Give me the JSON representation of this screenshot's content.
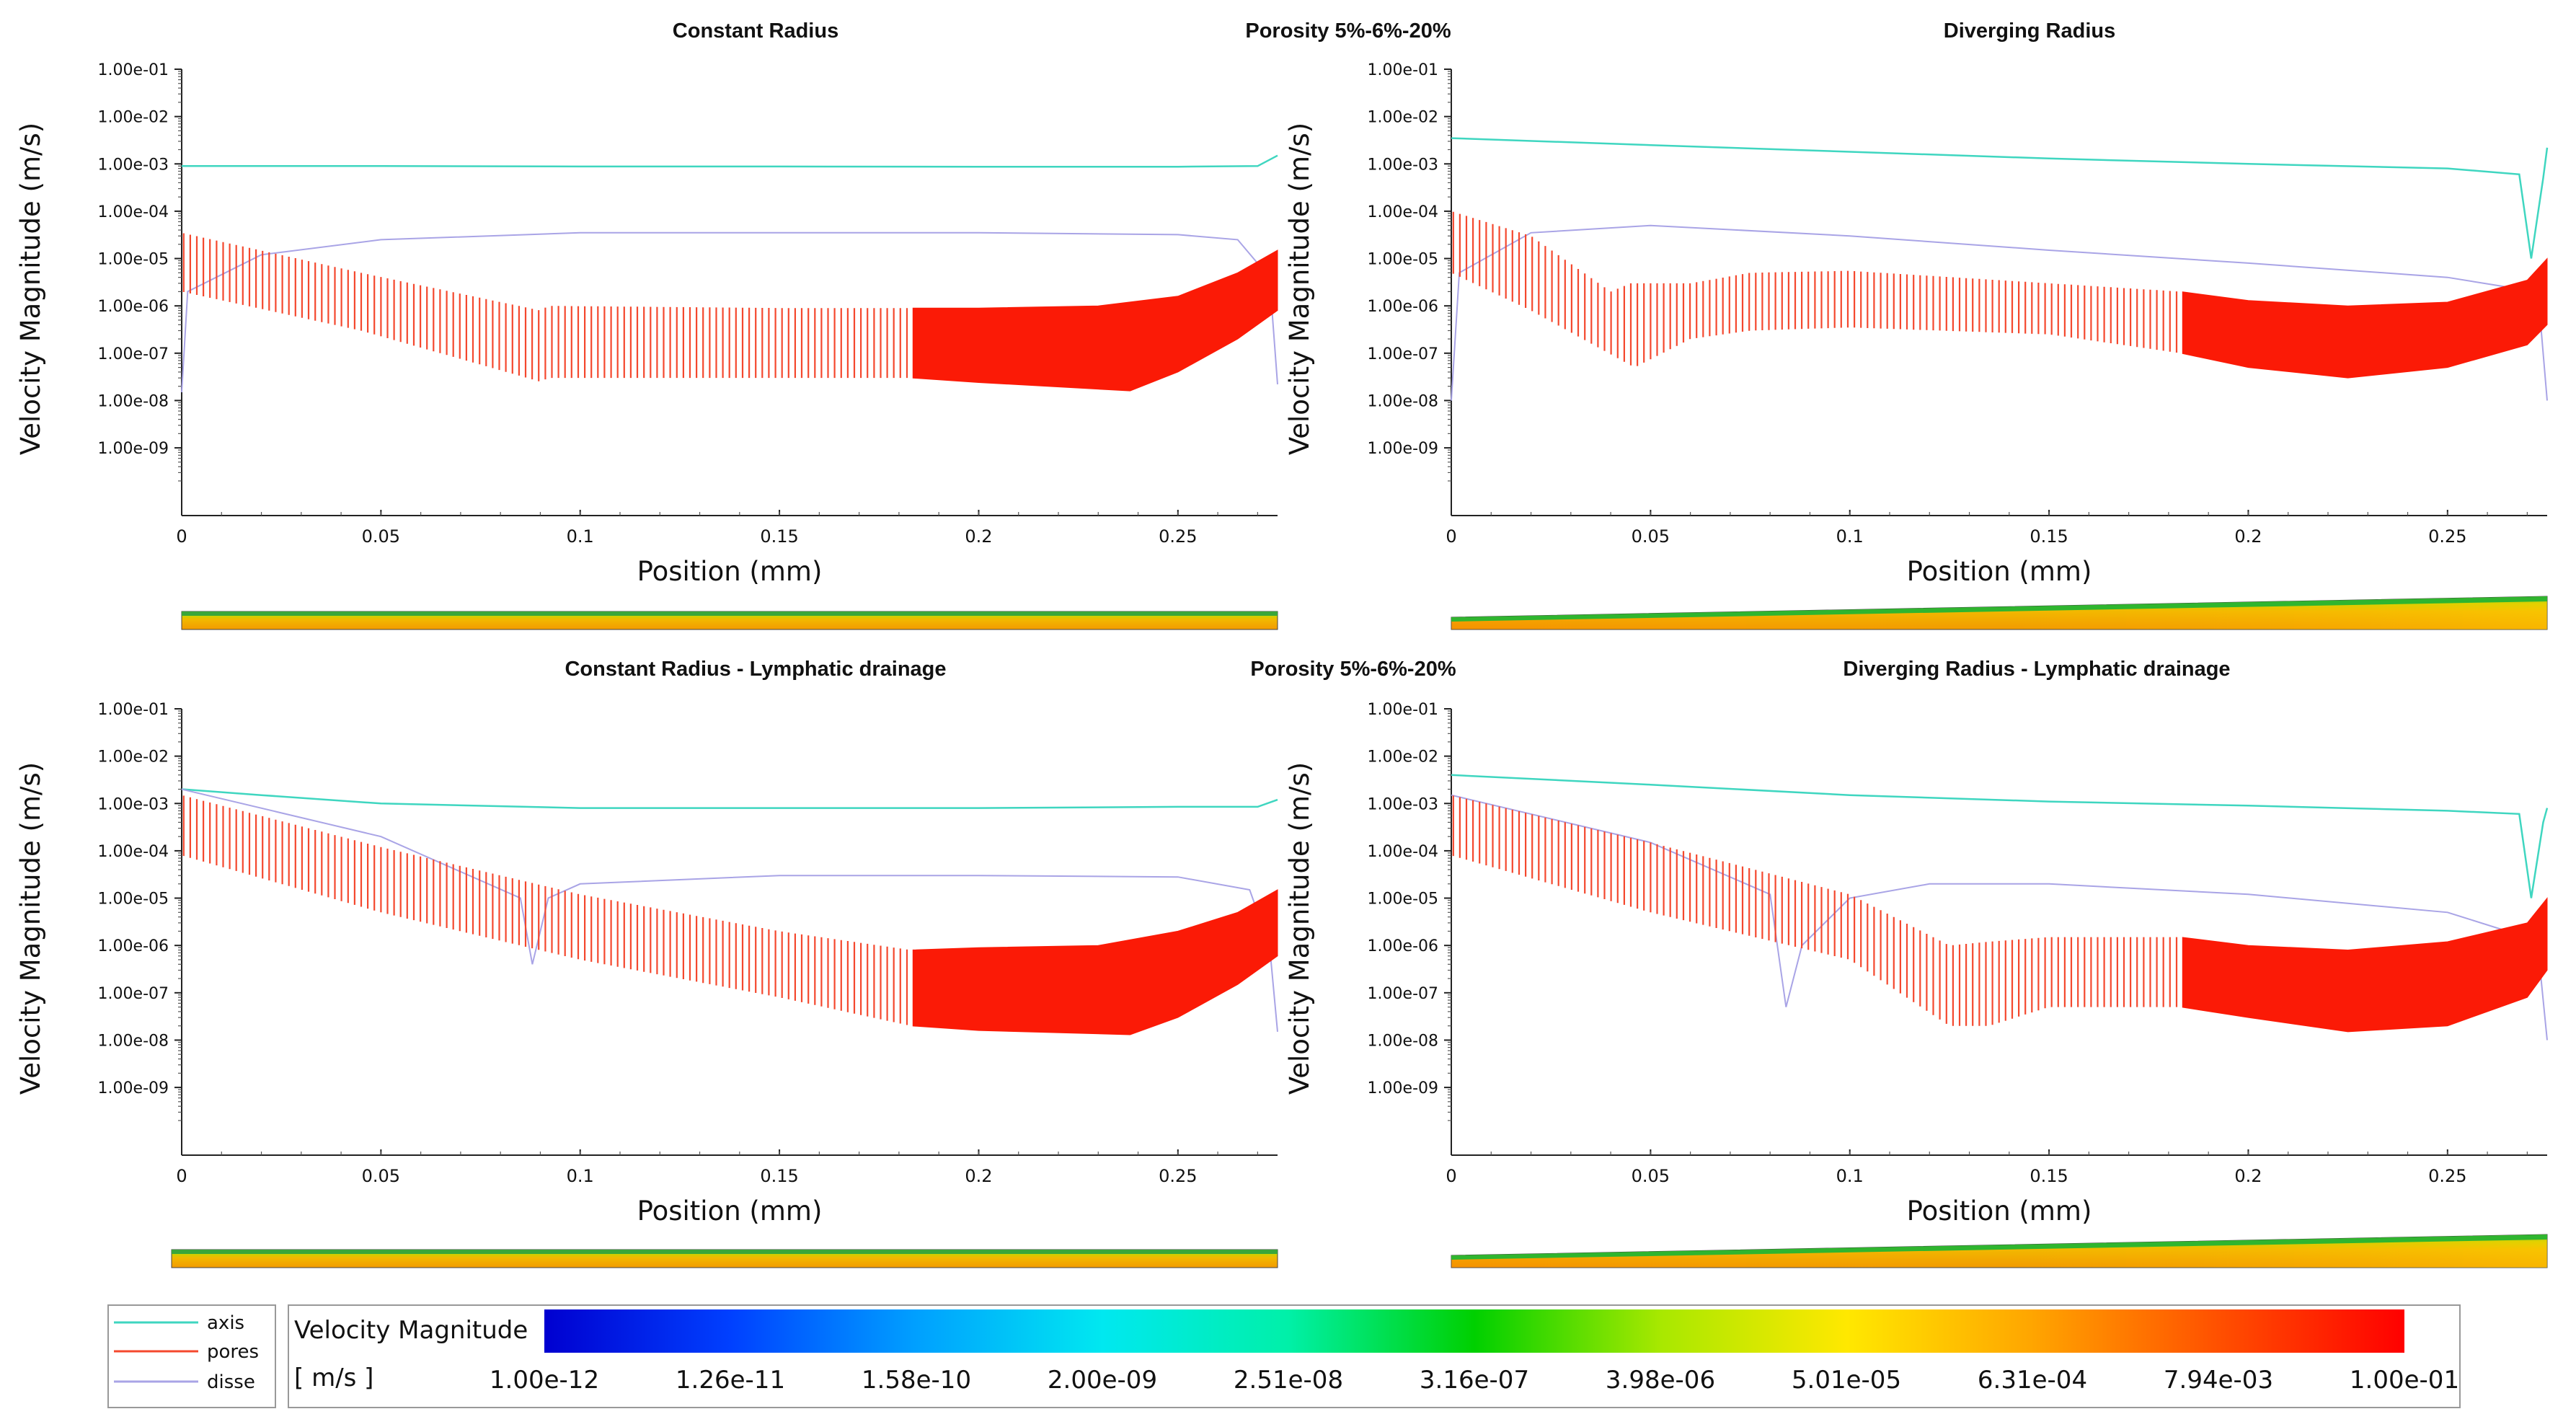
{
  "figure": {
    "porosity_label": "Porosity 5%-6%-20%",
    "legend": [
      {
        "name": "axis",
        "color": "#3fd6c0"
      },
      {
        "name": "pores",
        "color": "#f4482e"
      },
      {
        "name": "disse",
        "color": "#a9a4e6"
      }
    ],
    "colorbar": {
      "title": "Velocity Magnitude",
      "unit": "[ m/s ]",
      "ticks": [
        "1.00e-12",
        "1.26e-11",
        "1.58e-10",
        "2.00e-09",
        "2.51e-08",
        "3.16e-07",
        "3.98e-06",
        "5.01e-05",
        "6.31e-04",
        "7.94e-03",
        "1.00e-01"
      ],
      "colors": [
        "#0000d0",
        "#0040ff",
        "#00a0ff",
        "#00e8f0",
        "#00f0a8",
        "#00d000",
        "#a8e800",
        "#ffe800",
        "#ffa500",
        "#ff5000",
        "#ff0000"
      ]
    }
  },
  "chart_data": [
    {
      "type": "line",
      "title": "Constant Radius",
      "xlabel": "Position (mm)",
      "ylabel": "Velocity Magnitude (m/s)",
      "yscale": "log",
      "ylim": [
        1e-10,
        0.1
      ],
      "xlim": [
        0,
        0.275
      ],
      "x_ticks": [
        "0",
        "0.05",
        "0.1",
        "0.15",
        "0.2",
        "0.25"
      ],
      "y_ticks": [
        "1.00e-01",
        "1.00e-02",
        "1.00e-03",
        "1.00e-04",
        "1.00e-05",
        "1.00e-06",
        "1.00e-07",
        "1.00e-08",
        "1.00e-09"
      ],
      "series": [
        {
          "name": "axis",
          "points": [
            [
              0,
              0.0009
            ],
            [
              0.05,
              0.0009
            ],
            [
              0.1,
              0.00088
            ],
            [
              0.15,
              0.00088
            ],
            [
              0.2,
              0.00087
            ],
            [
              0.25,
              0.00087
            ],
            [
              0.27,
              0.0009
            ],
            [
              0.275,
              0.0015
            ]
          ]
        },
        {
          "name": "disse",
          "points": [
            [
              0,
              1.5e-08
            ],
            [
              0.0015,
              2e-06
            ],
            [
              0.02,
              1.2e-05
            ],
            [
              0.05,
              2.5e-05
            ],
            [
              0.1,
              3.5e-05
            ],
            [
              0.15,
              3.5e-05
            ],
            [
              0.2,
              3.5e-05
            ],
            [
              0.25,
              3.2e-05
            ],
            [
              0.265,
              2.5e-05
            ],
            [
              0.273,
              4e-06
            ],
            [
              0.275,
              2.2e-08
            ]
          ]
        },
        {
          "name": "pores",
          "top": [
            [
              0,
              3.5e-05
            ],
            [
              0.045,
              5e-06
            ],
            [
              0.09,
              8e-07
            ],
            [
              0.092,
              1e-06
            ],
            [
              0.15,
              9e-07
            ],
            [
              0.183,
              9e-07
            ],
            [
              0.2,
              9e-07
            ],
            [
              0.23,
              1e-06
            ],
            [
              0.25,
              1.6e-06
            ],
            [
              0.265,
              5e-06
            ],
            [
              0.275,
              1.5e-05
            ]
          ],
          "bottom": [
            [
              0,
              2e-06
            ],
            [
              0.045,
              3e-07
            ],
            [
              0.09,
              2.5e-08
            ],
            [
              0.092,
              3e-08
            ],
            [
              0.15,
              3e-08
            ],
            [
              0.183,
              3e-08
            ],
            [
              0.2,
              2.4e-08
            ],
            [
              0.238,
              1.6e-08
            ],
            [
              0.25,
              4e-08
            ],
            [
              0.265,
              2e-07
            ],
            [
              0.275,
              8e-07
            ]
          ],
          "hatched_until": 0.183
        }
      ],
      "contour_shape": "uniform"
    },
    {
      "type": "line",
      "title": "Diverging Radius",
      "xlabel": "Position (mm)",
      "ylabel": "Velocity Magnitude (m/s)",
      "yscale": "log",
      "ylim": [
        1e-10,
        0.1
      ],
      "xlim": [
        0,
        0.275
      ],
      "x_ticks": [
        "0",
        "0.05",
        "0.1",
        "0.15",
        "0.2",
        "0.25"
      ],
      "y_ticks": [
        "1.00e-01",
        "1.00e-02",
        "1.00e-03",
        "1.00e-04",
        "1.00e-05",
        "1.00e-06",
        "1.00e-07",
        "1.00e-08",
        "1.00e-09"
      ],
      "series": [
        {
          "name": "axis",
          "points": [
            [
              0,
              0.0035
            ],
            [
              0.05,
              0.0025
            ],
            [
              0.1,
              0.0018
            ],
            [
              0.15,
              0.0013
            ],
            [
              0.2,
              0.001
            ],
            [
              0.25,
              0.0008
            ],
            [
              0.268,
              0.0006
            ],
            [
              0.271,
              1e-05
            ],
            [
              0.274,
              0.0005
            ],
            [
              0.275,
              0.0022
            ]
          ]
        },
        {
          "name": "disse",
          "points": [
            [
              0,
              1e-08
            ],
            [
              0.002,
              5e-06
            ],
            [
              0.02,
              3.5e-05
            ],
            [
              0.05,
              5e-05
            ],
            [
              0.1,
              3e-05
            ],
            [
              0.15,
              1.5e-05
            ],
            [
              0.2,
              8e-06
            ],
            [
              0.25,
              4e-06
            ],
            [
              0.265,
              2.5e-06
            ],
            [
              0.273,
              1e-06
            ],
            [
              0.275,
              1e-08
            ]
          ]
        },
        {
          "name": "pores",
          "top": [
            [
              0,
              0.0001
            ],
            [
              0.02,
              3e-05
            ],
            [
              0.04,
              2e-06
            ],
            [
              0.045,
              3e-06
            ],
            [
              0.06,
              3e-06
            ],
            [
              0.075,
              5e-06
            ],
            [
              0.1,
              5.5e-06
            ],
            [
              0.15,
              3e-06
            ],
            [
              0.183,
              2e-06
            ],
            [
              0.2,
              1.3e-06
            ],
            [
              0.225,
              1e-06
            ],
            [
              0.25,
              1.2e-06
            ],
            [
              0.27,
              3.5e-06
            ],
            [
              0.275,
              1e-05
            ]
          ],
          "bottom": [
            [
              0,
              5e-06
            ],
            [
              0.02,
              8e-07
            ],
            [
              0.046,
              5e-08
            ],
            [
              0.06,
              2e-07
            ],
            [
              0.075,
              3e-07
            ],
            [
              0.1,
              3.5e-07
            ],
            [
              0.15,
              2.5e-07
            ],
            [
              0.183,
              1e-07
            ],
            [
              0.2,
              5e-08
            ],
            [
              0.225,
              3e-08
            ],
            [
              0.25,
              5e-08
            ],
            [
              0.27,
              1.5e-07
            ],
            [
              0.275,
              4e-07
            ]
          ],
          "hatched_until": 0.183
        }
      ],
      "contour_shape": "diverging"
    },
    {
      "type": "line",
      "title": "Constant Radius - Lymphatic drainage",
      "xlabel": "Position (mm)",
      "ylabel": "Velocity Magnitude (m/s)",
      "yscale": "log",
      "ylim": [
        1e-10,
        0.1
      ],
      "xlim": [
        0,
        0.275
      ],
      "x_ticks": [
        "0",
        "0.05",
        "0.1",
        "0.15",
        "0.2",
        "0.25"
      ],
      "y_ticks": [
        "1.00e-01",
        "1.00e-02",
        "1.00e-03",
        "1.00e-04",
        "1.00e-05",
        "1.00e-06",
        "1.00e-07",
        "1.00e-08",
        "1.00e-09"
      ],
      "series": [
        {
          "name": "axis",
          "points": [
            [
              0,
              0.002
            ],
            [
              0.02,
              0.0015
            ],
            [
              0.05,
              0.001
            ],
            [
              0.1,
              0.0008
            ],
            [
              0.15,
              0.0008
            ],
            [
              0.2,
              0.0008
            ],
            [
              0.25,
              0.00085
            ],
            [
              0.27,
              0.00085
            ],
            [
              0.275,
              0.0012
            ]
          ]
        },
        {
          "name": "disse",
          "points": [
            [
              0,
              0.002
            ],
            [
              0.05,
              0.0002
            ],
            [
              0.085,
              1e-05
            ],
            [
              0.088,
              4e-07
            ],
            [
              0.092,
              1e-05
            ],
            [
              0.1,
              2e-05
            ],
            [
              0.15,
              3e-05
            ],
            [
              0.2,
              3e-05
            ],
            [
              0.25,
              2.8e-05
            ],
            [
              0.268,
              1.5e-05
            ],
            [
              0.273,
              1e-06
            ],
            [
              0.275,
              1.5e-08
            ]
          ]
        },
        {
          "name": "pores",
          "top": [
            [
              0,
              0.0015
            ],
            [
              0.05,
              0.00012
            ],
            [
              0.1,
              1.2e-05
            ],
            [
              0.15,
              2e-06
            ],
            [
              0.183,
              8e-07
            ],
            [
              0.2,
              9e-07
            ],
            [
              0.23,
              1e-06
            ],
            [
              0.25,
              2e-06
            ],
            [
              0.265,
              5e-06
            ],
            [
              0.275,
              1.5e-05
            ]
          ],
          "bottom": [
            [
              0,
              8e-05
            ],
            [
              0.05,
              5e-06
            ],
            [
              0.1,
              5e-07
            ],
            [
              0.15,
              8e-08
            ],
            [
              0.183,
              2e-08
            ],
            [
              0.2,
              1.6e-08
            ],
            [
              0.238,
              1.3e-08
            ],
            [
              0.25,
              3e-08
            ],
            [
              0.265,
              1.5e-07
            ],
            [
              0.275,
              6e-07
            ]
          ],
          "hatched_until": 0.183
        }
      ],
      "contour_shape": "uniform"
    },
    {
      "type": "line",
      "title": "Diverging Radius - Lymphatic drainage",
      "xlabel": "Position (mm)",
      "ylabel": "Velocity Magnitude (m/s)",
      "yscale": "log",
      "ylim": [
        1e-10,
        0.1
      ],
      "xlim": [
        0,
        0.275
      ],
      "x_ticks": [
        "0",
        "0.05",
        "0.1",
        "0.15",
        "0.2",
        "0.25"
      ],
      "y_ticks": [
        "1.00e-01",
        "1.00e-02",
        "1.00e-03",
        "1.00e-04",
        "1.00e-05",
        "1.00e-06",
        "1.00e-07",
        "1.00e-08",
        "1.00e-09"
      ],
      "series": [
        {
          "name": "axis",
          "points": [
            [
              0,
              0.004
            ],
            [
              0.05,
              0.0025
            ],
            [
              0.1,
              0.0015
            ],
            [
              0.15,
              0.0011
            ],
            [
              0.2,
              0.0009
            ],
            [
              0.25,
              0.0007
            ],
            [
              0.268,
              0.0006
            ],
            [
              0.271,
              1e-05
            ],
            [
              0.274,
              0.0004
            ],
            [
              0.275,
              0.0008
            ]
          ]
        },
        {
          "name": "disse",
          "points": [
            [
              0,
              0.0015
            ],
            [
              0.05,
              0.00015
            ],
            [
              0.08,
              1.2e-05
            ],
            [
              0.084,
              5e-08
            ],
            [
              0.088,
              1e-06
            ],
            [
              0.1,
              1e-05
            ],
            [
              0.12,
              2e-05
            ],
            [
              0.15,
              2e-05
            ],
            [
              0.2,
              1.2e-05
            ],
            [
              0.25,
              5e-06
            ],
            [
              0.265,
              2e-06
            ],
            [
              0.273,
              5e-07
            ],
            [
              0.275,
              1e-08
            ]
          ]
        },
        {
          "name": "pores",
          "top": [
            [
              0,
              0.0015
            ],
            [
              0.05,
              0.00015
            ],
            [
              0.1,
              1.2e-05
            ],
            [
              0.125,
              1e-06
            ],
            [
              0.135,
              1.2e-06
            ],
            [
              0.15,
              1.5e-06
            ],
            [
              0.183,
              1.5e-06
            ],
            [
              0.2,
              1e-06
            ],
            [
              0.225,
              8e-07
            ],
            [
              0.25,
              1.2e-06
            ],
            [
              0.27,
              3e-06
            ],
            [
              0.275,
              1e-05
            ]
          ],
          "bottom": [
            [
              0,
              8e-05
            ],
            [
              0.05,
              5e-06
            ],
            [
              0.1,
              5e-07
            ],
            [
              0.125,
              2e-08
            ],
            [
              0.135,
              2e-08
            ],
            [
              0.15,
              5e-08
            ],
            [
              0.183,
              5e-08
            ],
            [
              0.2,
              3e-08
            ],
            [
              0.225,
              1.5e-08
            ],
            [
              0.25,
              2e-08
            ],
            [
              0.27,
              8e-08
            ],
            [
              0.275,
              3e-07
            ]
          ],
          "hatched_until": 0.183
        }
      ],
      "contour_shape": "diverging"
    }
  ]
}
